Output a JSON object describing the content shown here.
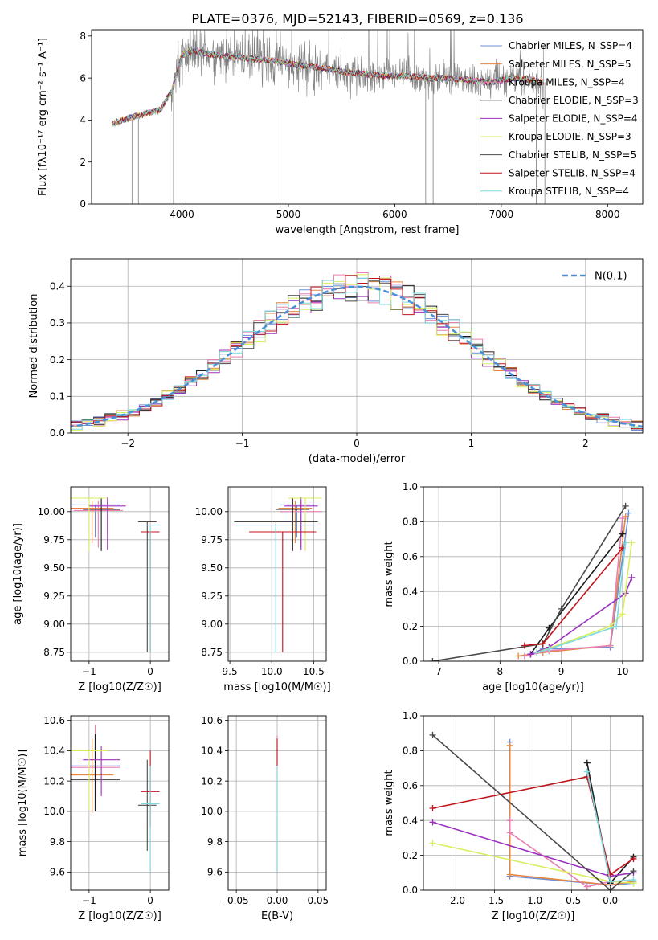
{
  "figure_title": "PLATE=0376, MJD=52143, FIBERID=0569, z=0.136",
  "colors": {
    "grid": "#b0b0b0",
    "data": "#808080",
    "normal_curve": "#4a90d9",
    "models": [
      "#6b8fd6",
      "#e5863e",
      "#e97fb0",
      "#1c1c1c",
      "#9b30c0",
      "#d8ee5f",
      "#4a4a4a",
      "#c0141c",
      "#7fd8dc"
    ]
  },
  "chart_data": [
    {
      "type": "line",
      "id": "spectrum",
      "xlabel": "wavelength [Angstrom, rest frame]",
      "ylabel": "Flux [fλ10⁻¹⁷ erg cm⁻² s⁻¹ A⁻¹]",
      "xlim": [
        3150,
        8330
      ],
      "ylim": [
        0,
        8.3
      ],
      "xticks": [
        4000,
        5000,
        6000,
        7000,
        8000
      ],
      "yticks": [
        0,
        2,
        4,
        6,
        8
      ],
      "grid": false,
      "legend_position": "right",
      "legend": [
        "Chabrier MILES, N_SSP=4",
        "Salpeter MILES, N_SSP=5",
        "Kroupa MILES, N_SSP=4",
        "Chabrier ELODIE, N_SSP=3",
        "Salpeter ELODIE, N_SSP=4",
        "Kroupa ELODIE, N_SSP=3",
        "Chabrier STELIB, N_SSP=5",
        "Salpeter STELIB, N_SSP=4",
        "Kroupa STELIB, N_SSP=4"
      ],
      "continuum": {
        "x": [
          3340,
          3500,
          3650,
          3800,
          3900,
          4000,
          4100,
          4300,
          4500,
          4700,
          4900,
          5100,
          5300,
          5500,
          5700,
          5900,
          6100,
          6300,
          6500,
          6700,
          6900,
          7100,
          7300,
          7400
        ],
        "y": [
          3.8,
          4.1,
          4.3,
          4.5,
          5.4,
          7.1,
          7.3,
          7.1,
          7.0,
          6.9,
          6.8,
          6.6,
          6.5,
          6.3,
          6.2,
          6.1,
          6.1,
          6.0,
          6.0,
          5.9,
          5.8,
          6.0,
          5.9,
          5.8
        ]
      }
    },
    {
      "type": "line",
      "id": "residuals",
      "xlabel": "(data-model)/error",
      "ylabel": "Normed distribution",
      "xlim": [
        -2.5,
        2.5
      ],
      "ylim": [
        0,
        0.475
      ],
      "xticks": [
        -2,
        -1,
        0,
        1,
        2
      ],
      "yticks": [
        0.0,
        0.1,
        0.2,
        0.3,
        0.4
      ],
      "grid": true,
      "legend_position": "upper right",
      "legend": [
        "N(0,1)"
      ],
      "bin_width": 0.1
    },
    {
      "type": "scatter",
      "id": "age_vs_Z",
      "xlabel": "Z [log10(Z/Z☉)]",
      "ylabel": "age  [log10(age/yr)]",
      "xlim": [
        -1.3,
        0.3
      ],
      "ylim": [
        8.67,
        10.22
      ],
      "xticks": [
        -1,
        0
      ],
      "yticks": [
        8.75,
        9.0,
        9.25,
        9.5,
        9.75,
        10.0
      ],
      "grid": true,
      "points": [
        {
          "x": -0.9,
          "xerr": 0.4,
          "y": 10.06,
          "ylo": 9.77,
          "yhi": 10.06,
          "model": 0
        },
        {
          "x": -0.95,
          "xerr": 0.35,
          "y": 10.03,
          "ylo": 9.72,
          "yhi": 10.1,
          "model": 1
        },
        {
          "x": -0.85,
          "xerr": 0.4,
          "y": 10.01,
          "ylo": 9.68,
          "yhi": 10.1,
          "model": 2
        },
        {
          "x": -0.8,
          "xerr": 0.3,
          "y": 10.02,
          "ylo": 9.65,
          "yhi": 10.12,
          "model": 3
        },
        {
          "x": -0.7,
          "xerr": 0.3,
          "y": 10.05,
          "ylo": 9.66,
          "yhi": 10.13,
          "model": 4
        },
        {
          "x": -1.0,
          "xerr": 0.3,
          "y": 10.12,
          "ylo": 9.65,
          "yhi": 10.12,
          "model": 5
        },
        {
          "x": -0.05,
          "xerr": 0.15,
          "y": 9.91,
          "ylo": 8.75,
          "yhi": 9.91,
          "model": 6
        },
        {
          "x": 0.0,
          "xerr": 0.15,
          "y": 9.82,
          "ylo": 8.75,
          "yhi": 9.82,
          "model": 7
        },
        {
          "x": 0.0,
          "xerr": 0.15,
          "y": 9.88,
          "ylo": 8.75,
          "yhi": 9.88,
          "model": 8
        }
      ]
    },
    {
      "type": "scatter",
      "id": "age_vs_mass",
      "xlabel": "mass [log10(M/M☉)]",
      "ylabel": "",
      "xlim": [
        9.48,
        10.65
      ],
      "ylim": [
        8.67,
        10.22
      ],
      "xticks": [
        9.5,
        10.0,
        10.5
      ],
      "yticks": [
        8.75,
        9.0,
        9.25,
        9.5,
        9.75,
        10.0
      ],
      "grid": true,
      "points": [
        {
          "x": 10.3,
          "xerr": 0.2,
          "y": 10.06,
          "ylo": 9.77,
          "yhi": 10.06,
          "model": 0
        },
        {
          "x": 10.28,
          "xerr": 0.2,
          "y": 10.03,
          "ylo": 9.72,
          "yhi": 10.1,
          "model": 1
        },
        {
          "x": 10.35,
          "xerr": 0.25,
          "y": 10.0,
          "ylo": 9.68,
          "yhi": 10.1,
          "model": 2
        },
        {
          "x": 10.25,
          "xerr": 0.2,
          "y": 10.02,
          "ylo": 9.65,
          "yhi": 10.12,
          "model": 3
        },
        {
          "x": 10.35,
          "xerr": 0.2,
          "y": 10.05,
          "ylo": 9.66,
          "yhi": 10.13,
          "model": 4
        },
        {
          "x": 10.4,
          "xerr": 0.2,
          "y": 10.12,
          "ylo": 9.65,
          "yhi": 10.12,
          "model": 5
        },
        {
          "x": 10.05,
          "xerr": 0.5,
          "y": 9.91,
          "ylo": 8.75,
          "yhi": 9.91,
          "model": 6
        },
        {
          "x": 10.13,
          "xerr": 0.4,
          "y": 9.82,
          "ylo": 8.75,
          "yhi": 9.82,
          "model": 7
        },
        {
          "x": 10.05,
          "xerr": 0.5,
          "y": 9.88,
          "ylo": 8.75,
          "yhi": 9.88,
          "model": 8
        }
      ]
    },
    {
      "type": "line",
      "id": "weight_vs_age",
      "xlabel": "age  [log10(age/yr)]",
      "ylabel": "mass weight",
      "xlim": [
        6.75,
        10.33
      ],
      "ylim": [
        0,
        1
      ],
      "xticks": [
        7,
        8,
        9,
        10
      ],
      "yticks": [
        0.0,
        0.2,
        0.4,
        0.6,
        0.8,
        1.0
      ],
      "grid": true,
      "series": [
        {
          "model": 0,
          "x": [
            8.5,
            8.7,
            9.8,
            10.1
          ],
          "y": [
            0.04,
            0.07,
            0.08,
            0.85
          ]
        },
        {
          "model": 1,
          "x": [
            8.3,
            8.7,
            9.8,
            10.05
          ],
          "y": [
            0.03,
            0.05,
            0.09,
            0.83
          ]
        },
        {
          "model": 2,
          "x": [
            8.4,
            8.8,
            9.8,
            10.0
          ],
          "y": [
            0.03,
            0.06,
            0.09,
            0.82
          ]
        },
        {
          "model": 3,
          "x": [
            8.5,
            8.8,
            10.0
          ],
          "y": [
            0.04,
            0.19,
            0.73
          ]
        },
        {
          "model": 4,
          "x": [
            8.5,
            8.8,
            10.05,
            10.15
          ],
          "y": [
            0.04,
            0.08,
            0.39,
            0.48
          ]
        },
        {
          "model": 5,
          "x": [
            8.6,
            9.8,
            10.0,
            10.15
          ],
          "y": [
            0.05,
            0.2,
            0.27,
            0.68
          ]
        },
        {
          "model": 6,
          "x": [
            6.9,
            8.7,
            9.0,
            10.05
          ],
          "y": [
            0.0,
            0.1,
            0.3,
            0.89
          ]
        },
        {
          "model": 7,
          "x": [
            8.4,
            8.7,
            10.0
          ],
          "y": [
            0.09,
            0.1,
            0.65
          ]
        },
        {
          "model": 8,
          "x": [
            8.6,
            8.8,
            9.9,
            10.05
          ],
          "y": [
            0.05,
            0.07,
            0.2,
            0.68
          ]
        }
      ]
    },
    {
      "type": "scatter",
      "id": "mass_vs_Z",
      "xlabel": "Z [log10(Z/Z☉)]",
      "ylabel": "mass [log10(M/M☉)]",
      "xlim": [
        -1.3,
        0.3
      ],
      "ylim": [
        9.48,
        10.63
      ],
      "xticks": [
        -1,
        0
      ],
      "yticks": [
        9.6,
        9.8,
        10.0,
        10.2,
        10.4,
        10.6
      ],
      "grid": true,
      "points": [
        {
          "x": -0.9,
          "xerr": 0.4,
          "y": 10.3,
          "ylo": 10.0,
          "yhi": 10.5,
          "model": 0
        },
        {
          "x": -0.95,
          "xerr": 0.35,
          "y": 10.24,
          "ylo": 9.99,
          "yhi": 10.48,
          "model": 1
        },
        {
          "x": -0.9,
          "xerr": 0.4,
          "y": 10.29,
          "ylo": 10.05,
          "yhi": 10.57,
          "model": 2
        },
        {
          "x": -0.9,
          "xerr": 0.4,
          "y": 10.21,
          "ylo": 10.0,
          "yhi": 10.51,
          "model": 3
        },
        {
          "x": -0.8,
          "xerr": 0.3,
          "y": 10.34,
          "ylo": 10.1,
          "yhi": 10.43,
          "model": 4
        },
        {
          "x": -1.0,
          "xerr": 0.3,
          "y": 10.4,
          "ylo": 10.01,
          "yhi": 10.4,
          "model": 5
        },
        {
          "x": -0.05,
          "xerr": 0.15,
          "y": 10.04,
          "ylo": 9.74,
          "yhi": 10.34,
          "model": 6
        },
        {
          "x": 0.0,
          "xerr": 0.15,
          "y": 10.13,
          "ylo": 9.9,
          "yhi": 10.4,
          "model": 7
        },
        {
          "x": 0.0,
          "xerr": 0.15,
          "y": 10.05,
          "ylo": 9.6,
          "yhi": 10.3,
          "model": 8
        }
      ]
    },
    {
      "type": "scatter",
      "id": "mass_vs_ebv",
      "xlabel": "E(B-V)",
      "ylabel": "",
      "xlim": [
        -0.06,
        0.06
      ],
      "ylim": [
        9.48,
        10.63
      ],
      "xticks": [
        -0.05,
        0.0,
        0.05
      ],
      "yticks": [
        9.6,
        9.8,
        10.0,
        10.2,
        10.4,
        10.6
      ],
      "grid": true,
      "points": [
        {
          "x": 0.0,
          "y": 10.3,
          "ylo": 9.6,
          "yhi": 10.5,
          "model": 2
        },
        {
          "x": 0.0,
          "y": 10.35,
          "ylo": 10.3,
          "yhi": 10.48,
          "model": 7
        },
        {
          "x": 0.0,
          "y": 10.05,
          "ylo": 9.6,
          "yhi": 10.3,
          "model": 8
        }
      ]
    },
    {
      "type": "line",
      "id": "weight_vs_Z",
      "xlabel": "Z [log10(Z/Z☉)]",
      "ylabel": "mass weight",
      "xlim": [
        -2.42,
        0.42
      ],
      "ylim": [
        0,
        1
      ],
      "xticks": [
        -2.0,
        -1.5,
        -1.0,
        -0.5,
        0.0
      ],
      "yticks": [
        0.0,
        0.2,
        0.4,
        0.6,
        0.8,
        1.0
      ],
      "grid": true,
      "series": [
        {
          "model": 0,
          "x": [
            -1.3,
            -1.3,
            0.0,
            0.3
          ],
          "y": [
            0.85,
            0.08,
            0.03,
            0.04
          ]
        },
        {
          "model": 1,
          "x": [
            -1.3,
            -1.3,
            0.0,
            0.3
          ],
          "y": [
            0.83,
            0.09,
            0.03,
            0.05
          ]
        },
        {
          "model": 2,
          "x": [
            -1.3,
            -1.3,
            -0.3,
            0.0
          ],
          "y": [
            0.4,
            0.33,
            0.02,
            0.05
          ]
        },
        {
          "model": 3,
          "x": [
            -0.3,
            0.0,
            0.3
          ],
          "y": [
            0.73,
            0.04,
            0.19
          ]
        },
        {
          "model": 4,
          "x": [
            -2.3,
            0.0,
            0.3
          ],
          "y": [
            0.39,
            0.08,
            0.1
          ]
        },
        {
          "model": 5,
          "x": [
            -2.3,
            0.0,
            0.3
          ],
          "y": [
            0.27,
            0.05,
            0.04
          ]
        },
        {
          "model": 6,
          "x": [
            -2.3,
            0.0,
            0.3
          ],
          "y": [
            0.89,
            0.0,
            0.11
          ]
        },
        {
          "model": 7,
          "x": [
            -2.3,
            -0.3,
            0.0,
            0.3
          ],
          "y": [
            0.47,
            0.65,
            0.09,
            0.18
          ]
        },
        {
          "model": 8,
          "x": [
            -0.3,
            0.0,
            0.3
          ],
          "y": [
            0.68,
            0.05,
            0.06
          ]
        }
      ]
    }
  ]
}
